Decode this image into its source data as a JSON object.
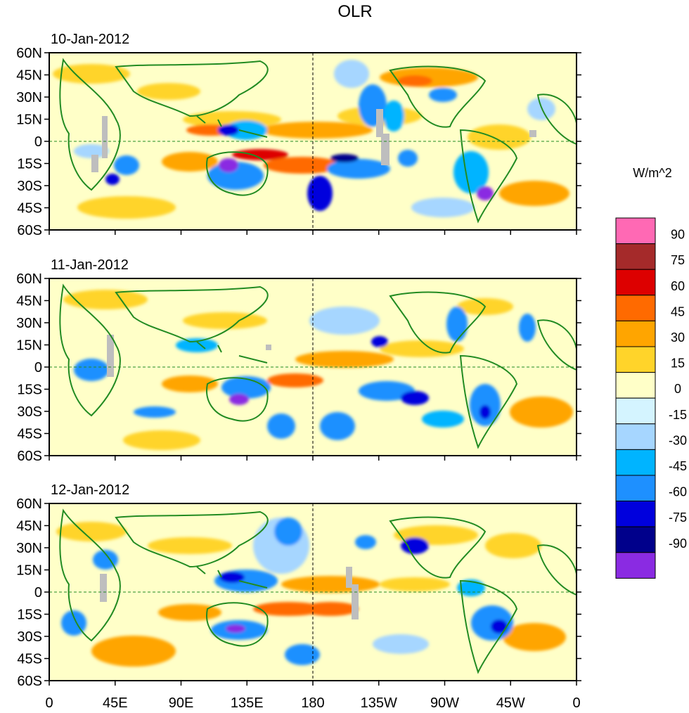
{
  "title": "OLR",
  "panels": [
    {
      "date": "10-Jan-2012"
    },
    {
      "date": "11-Jan-2012"
    },
    {
      "date": "12-Jan-2012"
    }
  ],
  "lat_labels": [
    "60N",
    "45N",
    "30N",
    "15N",
    "0",
    "15S",
    "30S",
    "45S",
    "60S"
  ],
  "lon_labels": [
    "0",
    "45E",
    "90E",
    "135E",
    "180",
    "135W",
    "90W",
    "45W",
    "0"
  ],
  "colorbar": {
    "units": "W/m^2",
    "labels": [
      "90",
      "75",
      "60",
      "45",
      "30",
      "15",
      "0",
      "-15",
      "-30",
      "-45",
      "-60",
      "-75",
      "-90"
    ],
    "colors": [
      "#ff69b4",
      "#a52a2a",
      "#dd0000",
      "#ff6a00",
      "#ffa500",
      "#ffd42a",
      "#ffffc8",
      "#d4f4ff",
      "#a6d6ff",
      "#00b4ff",
      "#1e90ff",
      "#0000dd",
      "#00008b",
      "#8a2be2"
    ]
  },
  "colors": {
    "coastline": "#228b22",
    "missing": "#bebebe"
  }
}
